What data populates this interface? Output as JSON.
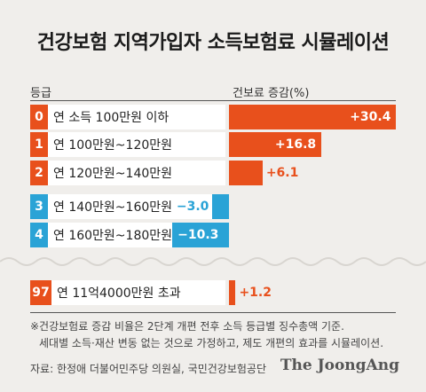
{
  "title": "건강보험 지역가입자 소득보험료 시뮬레이션",
  "header": {
    "grade": "등급",
    "change": "건보료 증감(%)"
  },
  "colors": {
    "positive": "#e8501c",
    "negative": "#2aa3d6"
  },
  "chart_data": {
    "type": "bar",
    "orientation": "horizontal",
    "title": "건강보험 지역가입자 소득보험료 시뮬레이션",
    "categories": [
      "연 소득 100만원 이하",
      "연 100만원~120만원",
      "연 120만원~140만원",
      "연 140만원~160만원",
      "연 160만원~180만원",
      "연 11억4000만원 초과"
    ],
    "grades": [
      "0",
      "1",
      "2",
      "3",
      "4",
      "97"
    ],
    "values": [
      30.4,
      16.8,
      6.1,
      -3.0,
      -10.3,
      1.2
    ],
    "value_labels": [
      "+30.4",
      "+16.8",
      "+6.1",
      "−3.0",
      "−10.3",
      "+1.2"
    ],
    "ylabel": "건보료 증감(%)"
  },
  "note": {
    "line1": "※건강보험료 증감 비율은 2단계 개편 전후 소득 등급별 징수총액 기준.",
    "line2": "세대별 소득·재산 변동 없는 것으로 가정하고, 제도 개편의 효과를 시뮬레이션."
  },
  "source": "자료: 한정애 더불어민주당 의원실, 국민건강보험공단",
  "brand": "The JoongAng"
}
